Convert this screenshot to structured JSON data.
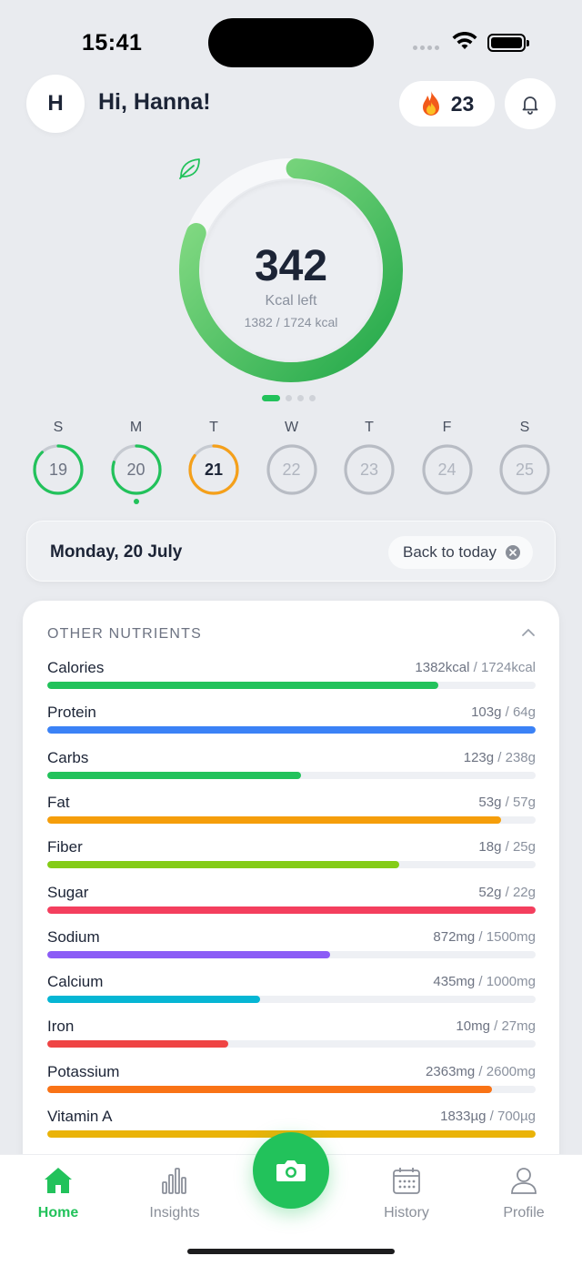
{
  "status_bar": {
    "time": "15:41"
  },
  "header": {
    "avatar_initial": "H",
    "greeting": "Hi, Hanna!",
    "streak_count": "23",
    "streak_icon": "fire-icon",
    "notification_icon": "bell-icon"
  },
  "summary": {
    "kcal_left": "342",
    "kcal_label": "Kcal left",
    "kcal_progress": "1382 / 1724 kcal",
    "consumed": 1382,
    "goal": 1724,
    "ring_colors": [
      "#8fe08a",
      "#22a849"
    ],
    "pager_active": 0,
    "pager_count": 4
  },
  "week": [
    {
      "letter": "S",
      "number": "19",
      "progress": 0.88,
      "color": "#22c25b",
      "state": "past"
    },
    {
      "letter": "M",
      "number": "20",
      "progress": 0.8,
      "color": "#22c25b",
      "state": "selected"
    },
    {
      "letter": "T",
      "number": "21",
      "progress": 0.85,
      "color": "#f5a01a",
      "state": "today"
    },
    {
      "letter": "W",
      "number": "22",
      "progress": 0,
      "color": "#b8bcc4",
      "state": "future"
    },
    {
      "letter": "T",
      "number": "23",
      "progress": 0,
      "color": "#b8bcc4",
      "state": "future"
    },
    {
      "letter": "F",
      "number": "24",
      "progress": 0,
      "color": "#b8bcc4",
      "state": "future"
    },
    {
      "letter": "S",
      "number": "25",
      "progress": 0,
      "color": "#b8bcc4",
      "state": "future"
    }
  ],
  "date_bar": {
    "title": "Monday, 20 July",
    "back_label": "Back to today"
  },
  "nutrients_card": {
    "title": "OTHER NUTRIENTS",
    "items": [
      {
        "name": "Calories",
        "current": "1382kcal",
        "target": "1724kcal",
        "fill": 0.8,
        "color": "#22c25b"
      },
      {
        "name": "Protein",
        "current": "103g",
        "target": "64g",
        "fill": 1.0,
        "color": "#3b82f6"
      },
      {
        "name": "Carbs",
        "current": "123g",
        "target": "238g",
        "fill": 0.52,
        "color": "#22c25b"
      },
      {
        "name": "Fat",
        "current": "53g",
        "target": "57g",
        "fill": 0.93,
        "color": "#f59e0b"
      },
      {
        "name": "Fiber",
        "current": "18g",
        "target": "25g",
        "fill": 0.72,
        "color": "#84cc16"
      },
      {
        "name": "Sugar",
        "current": "52g",
        "target": "22g",
        "fill": 1.0,
        "color": "#f43f5e"
      },
      {
        "name": "Sodium",
        "current": "872mg",
        "target": "1500mg",
        "fill": 0.58,
        "color": "#8b5cf6"
      },
      {
        "name": "Calcium",
        "current": "435mg",
        "target": "1000mg",
        "fill": 0.435,
        "color": "#06b6d4"
      },
      {
        "name": "Iron",
        "current": "10mg",
        "target": "27mg",
        "fill": 0.37,
        "color": "#ef4444"
      },
      {
        "name": "Potassium",
        "current": "2363mg",
        "target": "2600mg",
        "fill": 0.91,
        "color": "#f97316"
      },
      {
        "name": "Vitamin A",
        "current": "1833µg",
        "target": "700µg",
        "fill": 1.0,
        "color": "#eab308"
      }
    ]
  },
  "tab_bar": {
    "tabs": [
      {
        "label": "Home",
        "icon": "home-icon",
        "active": true
      },
      {
        "label": "Insights",
        "icon": "bar-chart-icon",
        "active": false
      },
      {
        "label": "History",
        "icon": "calendar-icon",
        "active": false
      },
      {
        "label": "Profile",
        "icon": "person-icon",
        "active": false
      }
    ],
    "center_icon": "camera-icon"
  }
}
